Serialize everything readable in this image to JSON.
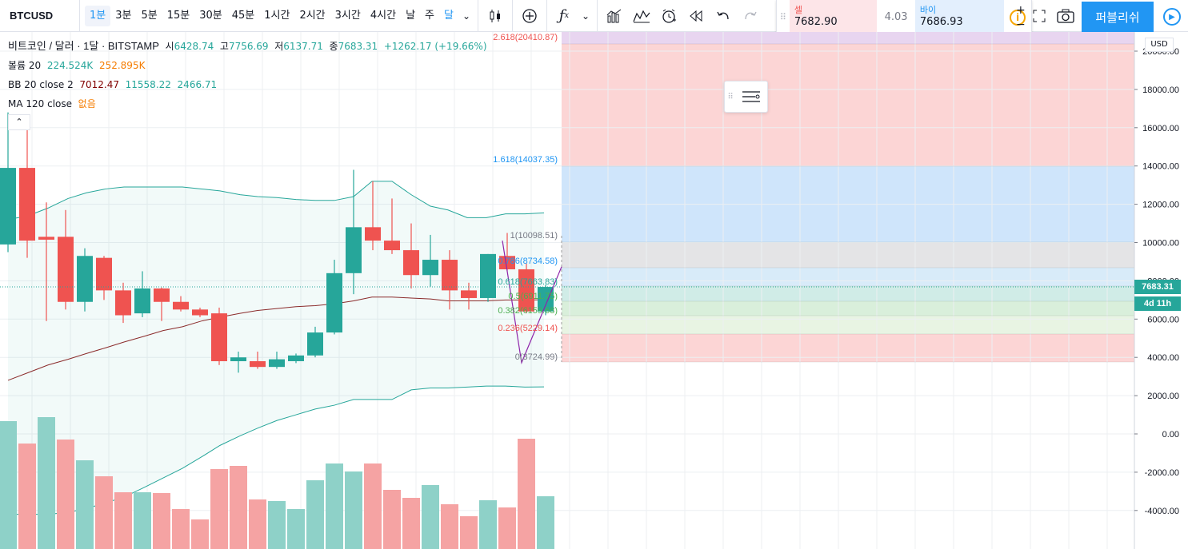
{
  "toolbar": {
    "symbol": "BTCUSD",
    "intervals": [
      {
        "label": "1분",
        "active": true
      },
      {
        "label": "3분"
      },
      {
        "label": "5분"
      },
      {
        "label": "15분"
      },
      {
        "label": "30분"
      },
      {
        "label": "45분"
      },
      {
        "label": "1시간"
      },
      {
        "label": "2시간"
      },
      {
        "label": "3시간"
      },
      {
        "label": "4시간"
      },
      {
        "label": "날"
      },
      {
        "label": "주"
      },
      {
        "label": "달",
        "blue": true
      }
    ],
    "publish_label": "퍼블리쉬"
  },
  "trade": {
    "sell_label": "셀",
    "sell_value": "7682.90",
    "spread": "4.03",
    "buy_label": "바이",
    "buy_value": "7686.93"
  },
  "legend": {
    "title": "비트코인 / 달러 · 1달 · BITSTAMP",
    "open_label": "시",
    "open": "6428.74",
    "high_label": "고",
    "high": "7756.69",
    "low_label": "저",
    "low": "6137.71",
    "close_label": "종",
    "close": "7683.31",
    "change": "+1262.17 (+19.66%)",
    "volume_label": "볼륨 20",
    "volume_a": "224.524K",
    "volume_b": "252.895K",
    "bb_label": "BB 20 close 2",
    "bb_mid": "7012.47",
    "bb_up": "11558.22",
    "bb_low": "2466.71",
    "ma_label": "MA 120 close",
    "ma_value": "없음"
  },
  "price_axis": {
    "currency": "USD",
    "ticks": [
      "20000.00",
      "18000.00",
      "16000.00",
      "14000.00",
      "12000.00",
      "10000.00",
      "8000.00",
      "6000.00",
      "4000.00",
      "2000.00",
      "0.00",
      "-2000.00",
      "-4000.00"
    ],
    "last_price": "7683.31",
    "countdown": "4d 11h"
  },
  "fib_labels": [
    {
      "text": "2.618(20410.87)",
      "color": "#ef5350"
    },
    {
      "text": "1.618(14037.35)",
      "color": "#2196f3"
    },
    {
      "text": "1(10098.51)",
      "color": "#787b86"
    },
    {
      "text": "0.786(8734.58)",
      "color": "#2196f3"
    },
    {
      "text": "0.618(7663.83)",
      "color": "#26a69a"
    },
    {
      "text": "0.5(6911.75)",
      "color": "#4caf50"
    },
    {
      "text": "0.382(6159.68)",
      "color": "#4caf50"
    },
    {
      "text": "0.236(5229.14)",
      "color": "#ef5350"
    },
    {
      "text": "0(3724.99)",
      "color": "#787b86"
    }
  ],
  "colors": {
    "up": "#26a69a",
    "down": "#ef5350",
    "up_vol": "#8ed1c8",
    "down_vol": "#f5a3a3",
    "accent": "#2196f3"
  }
}
